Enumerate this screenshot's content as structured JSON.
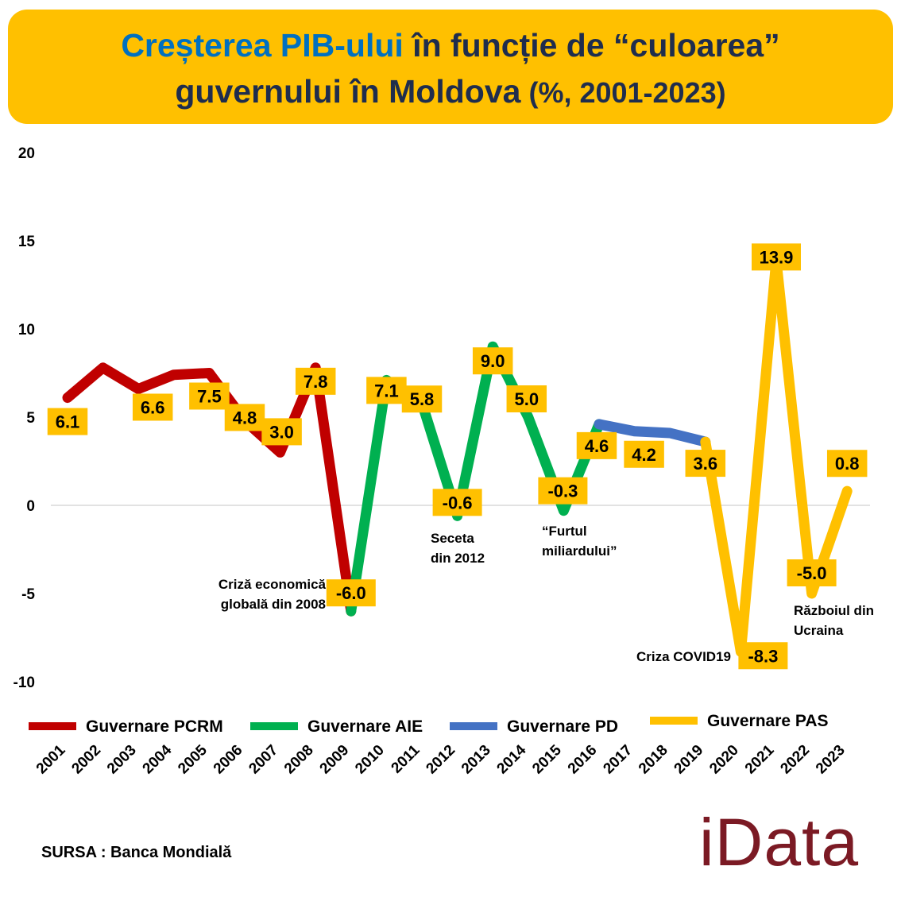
{
  "title": {
    "part1": "Creșterea PIB-ului",
    "part2": " în funcție de “culoarea”",
    "part3": "guvernului în Moldova",
    "part4": " (%, 2001-2023)"
  },
  "source": "SURSA : Banca Mondială",
  "logo": "iData",
  "chart_data": {
    "type": "line",
    "ylim": [
      -10,
      20
    ],
    "yticks": [
      -10,
      -5,
      0,
      5,
      10,
      15,
      20
    ],
    "grid": false,
    "legend_position": "bottom",
    "x": [
      "2001",
      "2002",
      "2003",
      "2004",
      "2005",
      "2006",
      "2007",
      "2008",
      "2009",
      "2010",
      "2011",
      "2012",
      "2013",
      "2014",
      "2015",
      "2016",
      "2017",
      "2018",
      "2019",
      "2020",
      "2021",
      "2022",
      "2023"
    ],
    "values": [
      6.1,
      7.8,
      6.6,
      7.4,
      7.5,
      4.8,
      3.0,
      7.8,
      -6.0,
      7.1,
      5.8,
      -0.6,
      9.0,
      5.0,
      -0.3,
      4.6,
      4.2,
      4.1,
      3.6,
      -8.3,
      13.9,
      -5.0,
      0.8
    ],
    "value_labels": [
      {
        "x": "2001",
        "text": "6.1"
      },
      {
        "x": "2003",
        "text": "6.6"
      },
      {
        "x": "2005",
        "text": "7.5"
      },
      {
        "x": "2006",
        "text": "4.8"
      },
      {
        "x": "2007",
        "text": "3.0"
      },
      {
        "x": "2008",
        "text": "7.8"
      },
      {
        "x": "2009",
        "text": "-6.0"
      },
      {
        "x": "2010",
        "text": "7.1"
      },
      {
        "x": "2011",
        "text": "5.8"
      },
      {
        "x": "2012",
        "text": "-0.6"
      },
      {
        "x": "2013",
        "text": "9.0"
      },
      {
        "x": "2014",
        "text": "5.0"
      },
      {
        "x": "2015",
        "text": "-0.3"
      },
      {
        "x": "2016",
        "text": "4.6"
      },
      {
        "x": "2017",
        "text": "4.2"
      },
      {
        "x": "2019",
        "text": "3.6"
      },
      {
        "x": "2020",
        "text": "-8.3"
      },
      {
        "x": "2021",
        "text": "13.9"
      },
      {
        "x": "2022",
        "text": "-5.0"
      },
      {
        "x": "2023",
        "text": "0.8"
      }
    ],
    "series": [
      {
        "name": "Guvernare PCRM",
        "color": "#c00000",
        "from": "2001",
        "to": "2009"
      },
      {
        "name": "Guvernare AIE",
        "color": "#00b050",
        "from": "2009",
        "to": "2016"
      },
      {
        "name": "Guvernare PD",
        "color": "#4472c4",
        "from": "2016",
        "to": "2019"
      },
      {
        "name": "Guvernare PAS",
        "color": "#ffc000",
        "from": "2019",
        "to": "2023"
      }
    ],
    "annotations": [
      {
        "x": "2009",
        "lines": [
          "Criză economică",
          "globală din 2008"
        ]
      },
      {
        "x": "2012",
        "lines": [
          "Seceta",
          "din 2012"
        ]
      },
      {
        "x": "2015",
        "lines": [
          "“Furtul",
          "miliardului”"
        ]
      },
      {
        "x": "2020",
        "lines": [
          "Criza COVID19"
        ]
      },
      {
        "x": "2022",
        "lines": [
          "Războiul din",
          "Ucraina"
        ]
      }
    ]
  }
}
